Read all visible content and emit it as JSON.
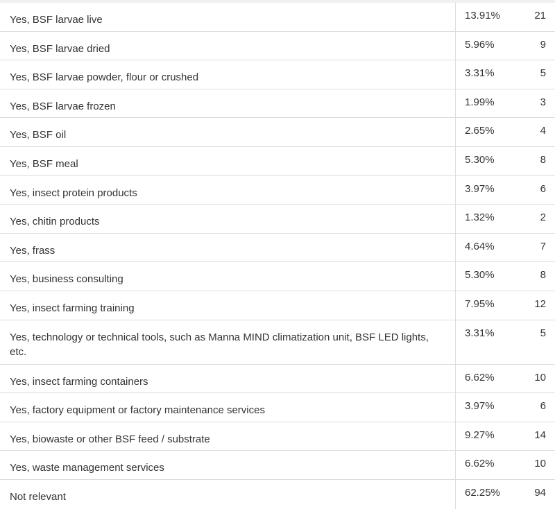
{
  "table": {
    "rows": [
      [
        "Yes, BSF larvae live",
        "13.91%",
        21
      ],
      [
        "Yes, BSF larvae dried",
        "5.96%",
        9
      ],
      [
        "Yes, BSF larvae powder, flour or crushed",
        "3.31%",
        5
      ],
      [
        "Yes, BSF larvae frozen",
        "1.99%",
        3
      ],
      [
        "Yes, BSF oil",
        "2.65%",
        4
      ],
      [
        "Yes, BSF meal",
        "5.30%",
        8
      ],
      [
        "Yes, insect protein products",
        "3.97%",
        6
      ],
      [
        "Yes, chitin products",
        "1.32%",
        2
      ],
      [
        "Yes, frass",
        "4.64%",
        7
      ],
      [
        "Yes, business consulting",
        "5.30%",
        8
      ],
      [
        "Yes, insect farming training",
        "7.95%",
        12
      ],
      [
        "Yes, technology or technical tools, such as Manna MIND climatization unit, BSF LED lights, etc.",
        "3.31%",
        5
      ],
      [
        "Yes, insect farming containers",
        "6.62%",
        10
      ],
      [
        "Yes, factory equipment or factory maintenance services",
        "3.97%",
        6
      ],
      [
        "Yes, biowaste or other BSF feed / substrate",
        "9.27%",
        14
      ],
      [
        "Yes, waste management services",
        "6.62%",
        10
      ],
      [
        "Not relevant",
        "62.25%",
        94
      ]
    ]
  }
}
